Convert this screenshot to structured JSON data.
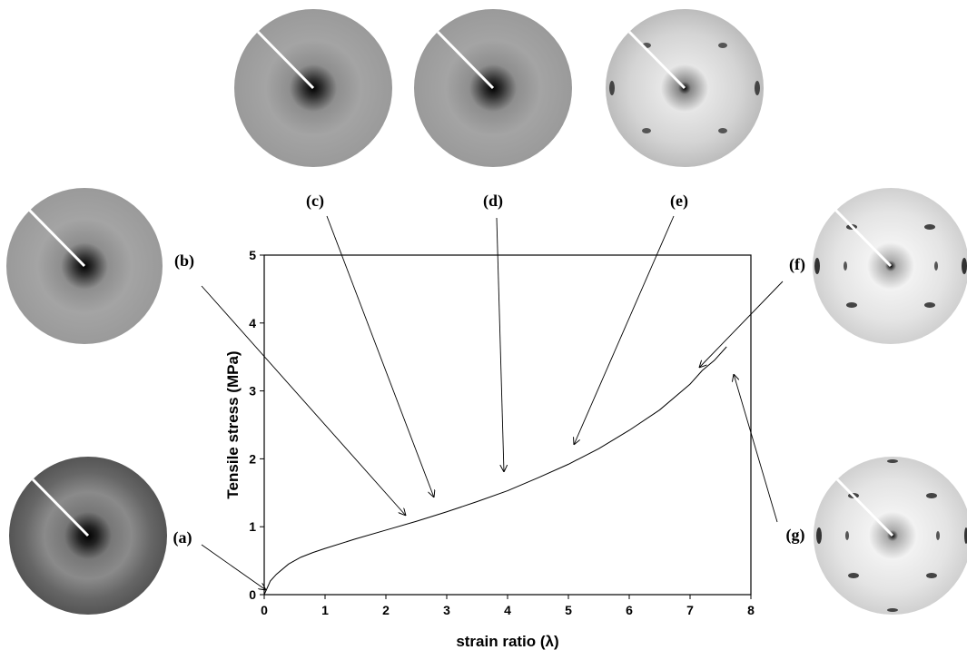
{
  "chart_data": {
    "type": "line",
    "xlabel": "strain ratio (λ)",
    "ylabel": "Tensile stress (MPa)",
    "x": [
      0,
      0.1,
      0.2,
      0.4,
      0.6,
      0.8,
      1,
      1.5,
      2,
      2.5,
      3,
      3.5,
      4,
      4.5,
      5,
      5.5,
      6,
      6.5,
      7,
      7.2,
      7.4,
      7.6
    ],
    "values": [
      0,
      0.2,
      0.3,
      0.45,
      0.55,
      0.62,
      0.68,
      0.82,
      0.95,
      1.08,
      1.22,
      1.37,
      1.53,
      1.72,
      1.92,
      2.15,
      2.42,
      2.72,
      3.1,
      3.3,
      3.45,
      3.65
    ],
    "color": "#000000",
    "xlim": [
      0,
      8
    ],
    "ylim": [
      0,
      5
    ],
    "xticks": [
      0,
      1,
      2,
      3,
      4,
      5,
      6,
      7,
      8
    ],
    "yticks": [
      0,
      1,
      2,
      3,
      4,
      5
    ],
    "annotations": [
      "(a)",
      "(b)",
      "(c)",
      "(d)",
      "(e)",
      "(f)",
      "(g)"
    ]
  }
}
